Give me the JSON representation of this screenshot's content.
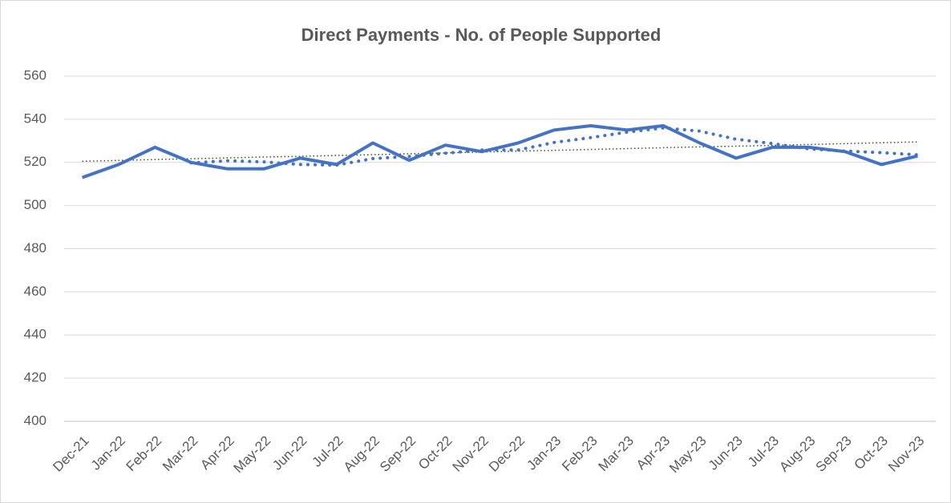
{
  "chart_data": {
    "type": "line",
    "title": "Direct Payments - No. of People Supported",
    "categories": [
      "Dec-21",
      "Jan-22",
      "Feb-22",
      "Mar-22",
      "Apr-22",
      "May-22",
      "Jun-22",
      "Jul-22",
      "Aug-22",
      "Sep-22",
      "Oct-22",
      "Nov-22",
      "Dec-22",
      "Jan-23",
      "Feb-23",
      "Mar-23",
      "Apr-23",
      "May-23",
      "Jun-23",
      "Jul-23",
      "Aug-23",
      "Sep-23",
      "Oct-23",
      "Nov-23"
    ],
    "series": [
      {
        "color": "#4472c4",
        "style": "solid",
        "values": [
          513,
          519,
          527,
          520,
          517,
          517,
          522,
          519,
          529,
          521,
          528,
          525,
          529,
          535,
          537,
          535,
          537,
          529,
          522,
          527,
          527,
          525,
          519,
          523
        ]
      },
      {
        "color": "#4472c4",
        "style": "dotted",
        "values": [
          null,
          null,
          null,
          519.75,
          520.75,
          520.25,
          519,
          518.75,
          521.75,
          522.75,
          524.25,
          525.75,
          525.75,
          529.25,
          531.5,
          534,
          536,
          534.5,
          530.75,
          528.75,
          526.25,
          525.25,
          524.5,
          523.5
        ]
      },
      {
        "color": "#375623",
        "style": "thin-dotted",
        "values": [
          520.5,
          520.9,
          521.3,
          521.7,
          522.1,
          522.5,
          522.8,
          523.2,
          523.6,
          524.0,
          524.4,
          524.8,
          525.2,
          525.6,
          526.0,
          526.4,
          526.8,
          527.2,
          527.5,
          527.9,
          528.3,
          528.7,
          529.1,
          529.5
        ]
      }
    ],
    "ylim": [
      400,
      560
    ],
    "yticks": [
      400,
      420,
      440,
      460,
      480,
      500,
      520,
      540,
      560
    ],
    "grid": true
  }
}
